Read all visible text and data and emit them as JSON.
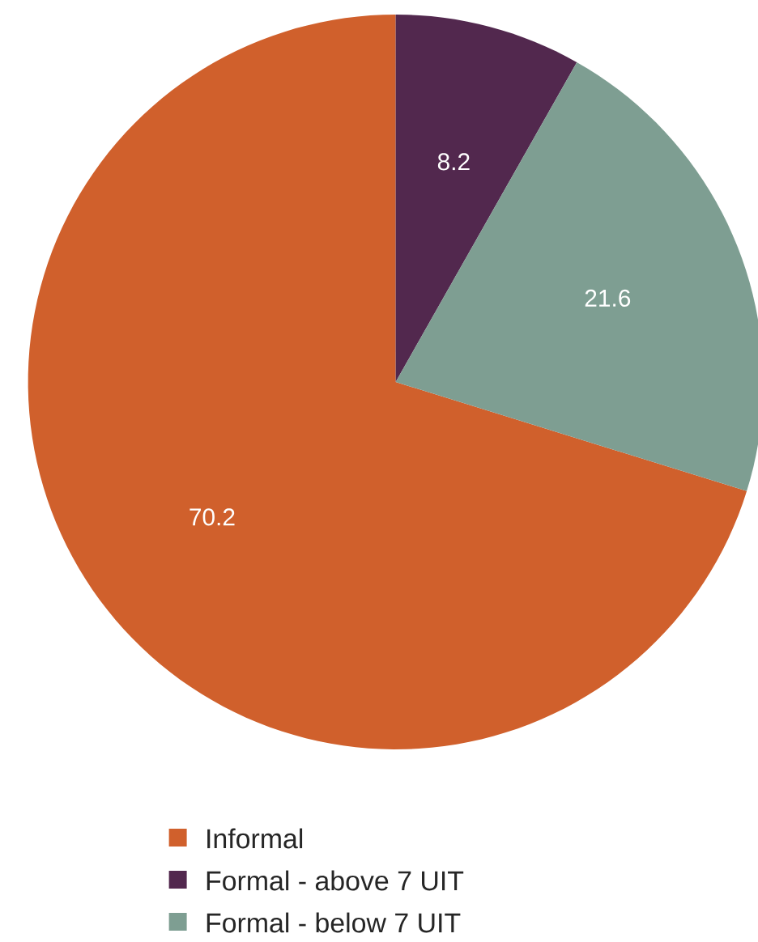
{
  "chart_data": {
    "type": "pie",
    "categories": [
      "Informal",
      "Formal - above 7 UIT",
      "Formal - below 7 UIT"
    ],
    "values": [
      70.2,
      8.2,
      21.6
    ],
    "colors": [
      "#d0602c",
      "#52284e",
      "#7e9e92"
    ],
    "data_labels": true,
    "legend": "bottom"
  }
}
